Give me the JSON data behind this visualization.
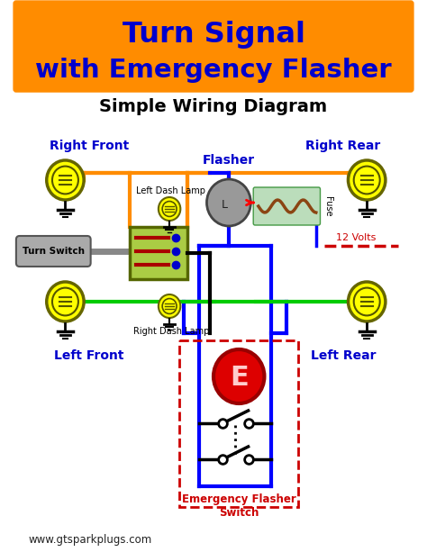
{
  "title_line1": "Turn Signal",
  "title_line2": "with Emergency Flasher",
  "subtitle": "Simple Wiring Diagram",
  "title_bg_color": "#FF8C00",
  "title_text_color": "#0000CC",
  "bg_color": "#FFFFFF",
  "label_right_front": "Right Front",
  "label_right_rear": "Right Rear",
  "label_left_front": "Left Front",
  "label_left_rear": "Left Rear",
  "label_flasher": "Flasher",
  "label_turn_switch": "Turn Switch",
  "label_left_dash": "Left Dash Lamp",
  "label_right_dash": "Right Dash Lamp",
  "label_fuse": "Fuse",
  "label_12v": "12 Volts",
  "label_emergency": "Emergency Flasher\nSwitch",
  "label_e": "E",
  "wire_orange": "#FF8C00",
  "wire_blue": "#0000FF",
  "wire_green": "#00CC00",
  "wire_black": "#000000",
  "wire_red": "#FF0000",
  "wire_brown": "#8B4513",
  "dashed_red": "#CC0000",
  "lamp_color": "#FFFF00",
  "lamp_stroke": "#888800",
  "switch_fill": "#AACC44",
  "switch_stroke": "#556600",
  "flasher_fill": "#888888",
  "emergency_fill": "#DD0000",
  "emergency_stroke": "#990000",
  "emergency_box_color": "#CC0000",
  "fuse_bg": "#BBDDBB",
  "ground_color": "#000000",
  "website": "www.gtsparkplugs.com"
}
